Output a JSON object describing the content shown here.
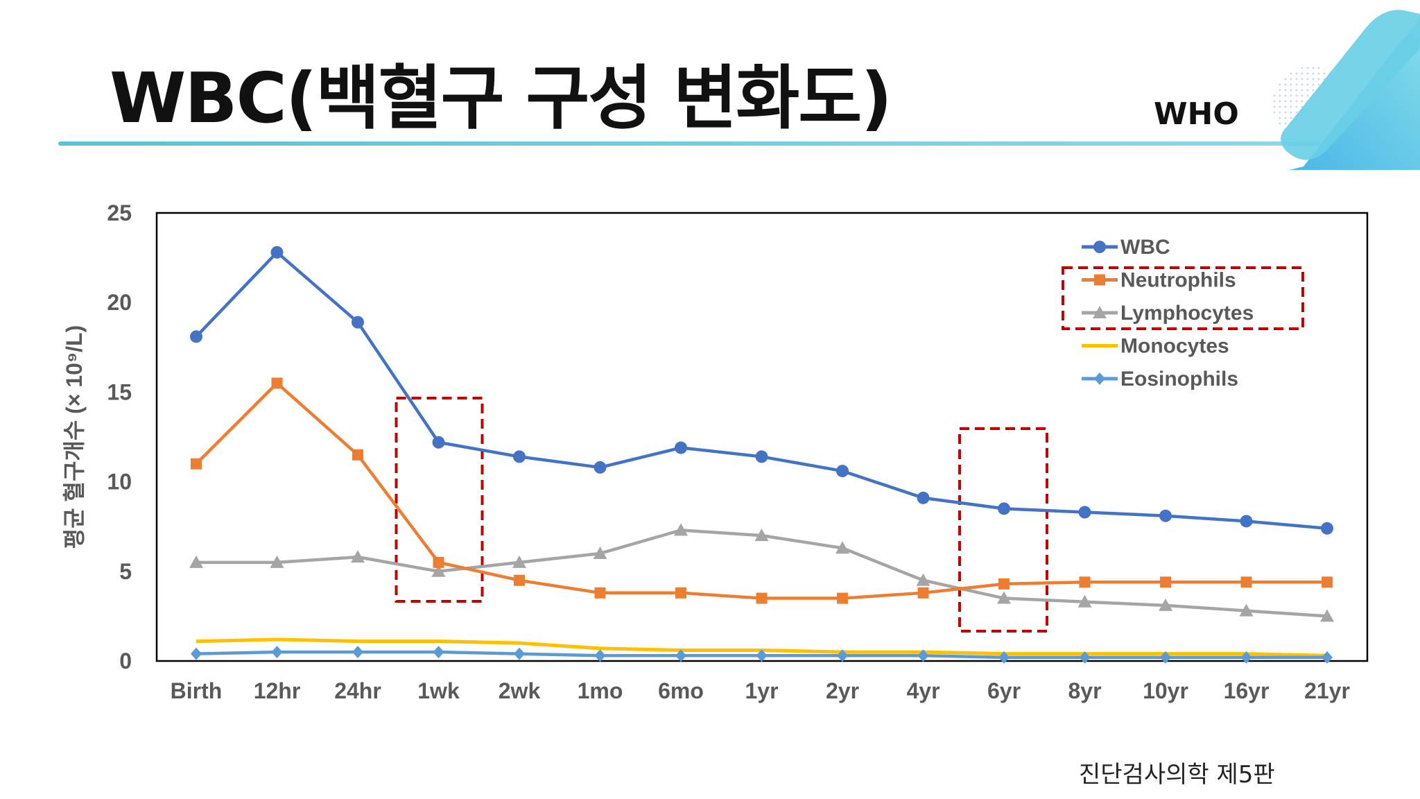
{
  "slide": {
    "title": "WBC(백혈구 구성 변화도)",
    "who_label": "WHO",
    "source": "진단검사의학 제5판"
  },
  "chart_data": {
    "type": "line",
    "title": "",
    "xlabel": "",
    "ylabel": "평균 혈구개수 (× 10⁹/L)",
    "ylim": [
      0,
      25
    ],
    "yticks": [
      0,
      5,
      10,
      15,
      20,
      25
    ],
    "grid": false,
    "legend": "top-right",
    "categories": [
      "Birth",
      "12hr",
      "24hr",
      "1wk",
      "2wk",
      "1mo",
      "6mo",
      "1yr",
      "2yr",
      "4yr",
      "6yr",
      "8yr",
      "10yr",
      "16yr",
      "21yr"
    ],
    "series": [
      {
        "name": "WBC",
        "color": "#4472c4",
        "marker": "circle",
        "values": [
          18.1,
          22.8,
          18.9,
          12.2,
          11.4,
          10.8,
          11.9,
          11.4,
          10.6,
          9.1,
          8.5,
          8.3,
          8.1,
          7.8,
          7.4
        ]
      },
      {
        "name": "Neutrophils",
        "color": "#ed7d31",
        "marker": "square",
        "values": [
          11.0,
          15.5,
          11.5,
          5.5,
          4.5,
          3.8,
          3.8,
          3.5,
          3.5,
          3.8,
          4.3,
          4.4,
          4.4,
          4.4,
          4.4
        ]
      },
      {
        "name": "Lymphocytes",
        "color": "#a5a5a5",
        "marker": "triangle",
        "values": [
          5.5,
          5.5,
          5.8,
          5.0,
          5.5,
          6.0,
          7.3,
          7.0,
          6.3,
          4.5,
          3.5,
          3.3,
          3.1,
          2.8,
          2.5
        ]
      },
      {
        "name": "Monocytes",
        "color": "#ffc000",
        "marker": "none",
        "values": [
          1.1,
          1.2,
          1.1,
          1.1,
          1.0,
          0.7,
          0.6,
          0.6,
          0.5,
          0.5,
          0.4,
          0.4,
          0.4,
          0.4,
          0.3
        ]
      },
      {
        "name": "Eosinophils",
        "color": "#5b9bd5",
        "marker": "diamond",
        "values": [
          0.4,
          0.5,
          0.5,
          0.5,
          0.4,
          0.3,
          0.3,
          0.3,
          0.3,
          0.3,
          0.2,
          0.2,
          0.2,
          0.2,
          0.2
        ]
      }
    ],
    "annotations": [
      {
        "type": "dashed-box",
        "label": "",
        "target": "1wk",
        "color": "#c00000"
      },
      {
        "type": "dashed-box",
        "label": "",
        "target": "6yr",
        "color": "#c00000"
      },
      {
        "type": "dashed-box",
        "label": "",
        "target": "legend:Neutrophils,Lymphocytes",
        "color": "#c00000"
      }
    ]
  }
}
